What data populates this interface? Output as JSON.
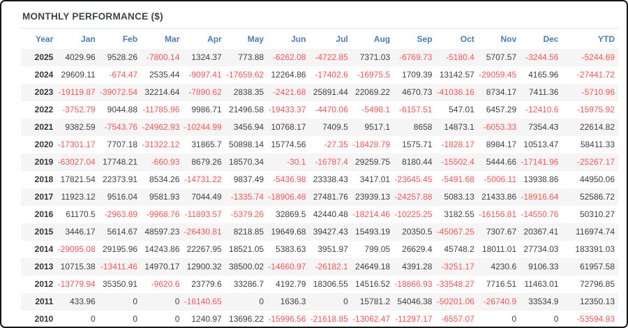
{
  "header": {
    "title": "MONTHLY PERFORMANCE ($)"
  },
  "colors": {
    "title_text": "#3b434c",
    "column_header_text": "#4a7cba",
    "positive_value": "#3f3f3f",
    "negative_value": "#fb5454",
    "row_stripe": "#f5f5f5",
    "frame_border": "#161616"
  },
  "table": {
    "columns": [
      "Year",
      "Jan",
      "Feb",
      "Mar",
      "Apr",
      "May",
      "Jun",
      "Jul",
      "Aug",
      "Sep",
      "Oct",
      "Nov",
      "Dec",
      "YTD"
    ],
    "rows": [
      {
        "year": "2025",
        "values": [
          "4029.96",
          "9528.26",
          "-7800.14",
          "1324.37",
          "773.88",
          "-6262.08",
          "-4722.85",
          "7371.03",
          "-6769.73",
          "-5180.4",
          "5707.57",
          "-3244.56",
          "-5244.69"
        ]
      },
      {
        "year": "2024",
        "values": [
          "29609.11",
          "-674.47",
          "2535.44",
          "-9097.41",
          "-17659.62",
          "12264.86",
          "-17402.6",
          "-16975.5",
          "1709.39",
          "13142.57",
          "-29059.45",
          "4165.96",
          "-27441.72"
        ]
      },
      {
        "year": "2023",
        "values": [
          "-19119.87",
          "-39072.54",
          "32214.64",
          "-7890.62",
          "2838.35",
          "-2421.68",
          "25891.44",
          "22069.22",
          "4670.73",
          "-41036.16",
          "8734.17",
          "7411.36",
          "-5710.96"
        ]
      },
      {
        "year": "2022",
        "values": [
          "-3752.79",
          "9044.88",
          "-11785.96",
          "9986.71",
          "21496.58",
          "-19433.37",
          "-4470.06",
          "-5498.1",
          "-6157.51",
          "547.01",
          "6457.29",
          "-12410.6",
          "-15975.92"
        ]
      },
      {
        "year": "2021",
        "values": [
          "9382.59",
          "-7543.76",
          "-24962.93",
          "-10244.99",
          "3456.94",
          "10768.17",
          "7409.5",
          "9517.1",
          "8658",
          "14873.1",
          "-6053.33",
          "7354.43",
          "22614.82"
        ]
      },
      {
        "year": "2020",
        "values": [
          "-17301.17",
          "7707.18",
          "-31322.12",
          "31865.7",
          "50898.14",
          "15774.56",
          "-27.35",
          "-18428.79",
          "1575.71",
          "-1828.17",
          "8984.17",
          "10513.47",
          "58411.33"
        ]
      },
      {
        "year": "2019",
        "values": [
          "-63027.04",
          "17748.21",
          "-660.93",
          "8679.26",
          "18570.34",
          "-30.1",
          "-16787.4",
          "29259.75",
          "8180.44",
          "-15502.4",
          "5444.66",
          "-17141.96",
          "-25267.17"
        ]
      },
      {
        "year": "2018",
        "values": [
          "17821.54",
          "22373.91",
          "8534.26",
          "-14731.22",
          "9837.49",
          "-5436.98",
          "23338.43",
          "3417.01",
          "-23645.45",
          "-5491.68",
          "-5006.11",
          "13938.86",
          "44950.06"
        ]
      },
      {
        "year": "2017",
        "values": [
          "11923.12",
          "9516.04",
          "9581.93",
          "7044.49",
          "-1335.74",
          "-18906.48",
          "27481.76",
          "23939.13",
          "-24257.88",
          "5083.13",
          "21433.86",
          "-18916.64",
          "52586.72"
        ]
      },
      {
        "year": "2016",
        "values": [
          "61170.5",
          "-2963.89",
          "-9968.76",
          "-11893.57",
          "-5379.26",
          "32869.5",
          "42440.48",
          "-18214.46",
          "-10225.25",
          "3182.55",
          "-16156.81",
          "-14550.76",
          "50310.27"
        ]
      },
      {
        "year": "2015",
        "values": [
          "3446.17",
          "5614.67",
          "48597.23",
          "-26430.81",
          "8218.85",
          "19649.68",
          "39427.43",
          "15493.19",
          "20350.5",
          "-45067.25",
          "7307.67",
          "20367.41",
          "116974.74"
        ]
      },
      {
        "year": "2014",
        "values": [
          "-29095.08",
          "29195.96",
          "14243.86",
          "22267.95",
          "18521.05",
          "5383.63",
          "3951.97",
          "799.05",
          "26629.4",
          "45748.2",
          "18011.01",
          "27734.03",
          "183391.03"
        ]
      },
      {
        "year": "2013",
        "values": [
          "10715.38",
          "-13411.46",
          "14970.17",
          "12900.32",
          "38500.02",
          "-14660.97",
          "-26182.1",
          "24649.18",
          "4391.28",
          "-3251.17",
          "4230.6",
          "9106.33",
          "61957.58"
        ]
      },
      {
        "year": "2012",
        "values": [
          "-13779.94",
          "35350.91",
          "-9620.6",
          "23779.6",
          "33286.7",
          "4192.79",
          "18306.55",
          "14516.52",
          "-18866.93",
          "-33548.27",
          "7716.51",
          "11463.01",
          "72796.85"
        ]
      },
      {
        "year": "2011",
        "values": [
          "433.96",
          "0",
          "0",
          "-16140.65",
          "0",
          "1636.3",
          "0",
          "15781.2",
          "54046.38",
          "-50201.06",
          "-26740.9",
          "33534.9",
          "12350.13"
        ]
      },
      {
        "year": "2010",
        "values": [
          "0",
          "0",
          "0",
          "1240.97",
          "13696.22",
          "-15996.56",
          "-21618.85",
          "-13062.47",
          "-11297.17",
          "-6557.07",
          "0",
          "0",
          "-53594.93"
        ]
      }
    ]
  }
}
